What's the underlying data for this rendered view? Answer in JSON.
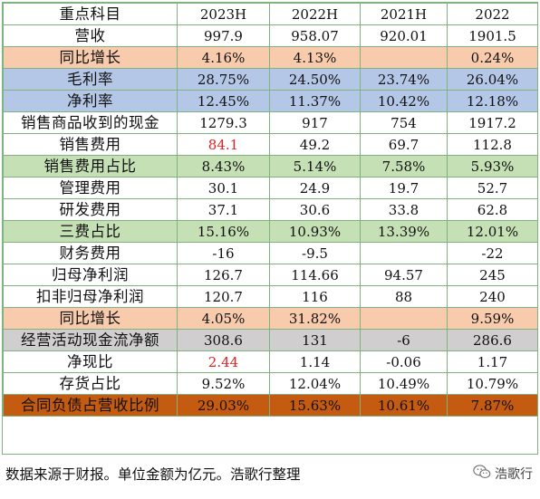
{
  "table": {
    "header": [
      "重点科目",
      "2023H",
      "2022H",
      "2021H",
      "2022"
    ],
    "rows": [
      {
        "label": "营收",
        "cells": [
          "997.9",
          "958.07",
          "920.01",
          "1901.5"
        ],
        "fill": "none"
      },
      {
        "label": "同比增长",
        "cells": [
          "4.16%",
          "4.13%",
          "",
          "0.24%"
        ],
        "fill": "peach"
      },
      {
        "label": "毛利率",
        "cells": [
          "28.75%",
          "24.50%",
          "23.74%",
          "26.04%"
        ],
        "fill": "blue"
      },
      {
        "label": "净利率",
        "cells": [
          "12.45%",
          "11.37%",
          "10.42%",
          "12.18%"
        ],
        "fill": "blue"
      },
      {
        "label": "销售商品收到的现金",
        "cells": [
          "1279.3",
          "917",
          "754",
          "1917.2"
        ],
        "fill": "none"
      },
      {
        "label": "销售费用",
        "cells": [
          "84.1",
          "49.2",
          "69.7",
          "112.8"
        ],
        "fill": "none",
        "red_first": true
      },
      {
        "label": "销售费用占比",
        "cells": [
          "8.43%",
          "5.14%",
          "7.58%",
          "5.93%"
        ],
        "fill": "green"
      },
      {
        "label": "管理费用",
        "cells": [
          "30.1",
          "24.9",
          "19.7",
          "52.7"
        ],
        "fill": "none"
      },
      {
        "label": "研发费用",
        "cells": [
          "37.1",
          "30.6",
          "33.8",
          "62.8"
        ],
        "fill": "none"
      },
      {
        "label": "三费占比",
        "cells": [
          "15.16%",
          "10.93%",
          "13.39%",
          "12.01%"
        ],
        "fill": "green"
      },
      {
        "label": "财务费用",
        "cells": [
          "-16",
          "-9.5",
          "",
          "-22"
        ],
        "fill": "none"
      },
      {
        "label": "归母净利润",
        "cells": [
          "126.7",
          "114.66",
          "94.57",
          "245"
        ],
        "fill": "none"
      },
      {
        "label": "扣非归母净利润",
        "cells": [
          "120.7",
          "116",
          "88",
          "240"
        ],
        "fill": "none"
      },
      {
        "label": "同比增长",
        "cells": [
          "4.05%",
          "31.82%",
          "",
          "9.59%"
        ],
        "fill": "peach"
      },
      {
        "label": "经营活动现金流净额",
        "cells": [
          "308.6",
          "131",
          "-6",
          "286.6"
        ],
        "fill": "gray"
      },
      {
        "label": "净现比",
        "cells": [
          "2.44",
          "1.14",
          "-0.06",
          "1.17"
        ],
        "fill": "none",
        "red_first": true
      },
      {
        "label": "存货占比",
        "cells": [
          "9.52%",
          "12.04%",
          "10.49%",
          "10.79%"
        ],
        "fill": "none"
      },
      {
        "label": "合同负债占营收比例",
        "cells": [
          "29.03%",
          "15.63%",
          "10.61%",
          "7.87%"
        ],
        "fill": "orange"
      }
    ]
  },
  "footer": {
    "note": "数据来源于财报。单位金额为亿元。浩歌行整理"
  },
  "watermark": {
    "text": "浩歌行",
    "icon": "wechat-icon"
  },
  "colors": {
    "border": "#7fb27f",
    "peach": "#f8cbad",
    "blue": "#b4c7e7",
    "green": "#c5e0b4",
    "gray": "#d0cece",
    "orange": "#c55a11",
    "red_text": "#e02020"
  }
}
